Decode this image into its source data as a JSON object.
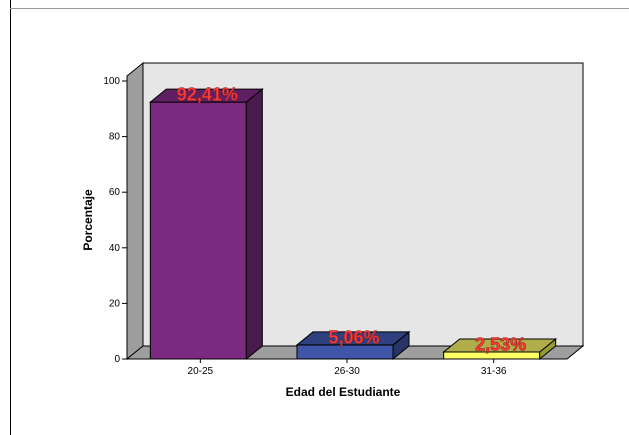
{
  "chart_data": {
    "type": "bar",
    "categories": [
      "20-25",
      "26-30",
      "31-36"
    ],
    "values": [
      92.41,
      5.06,
      2.53
    ],
    "data_labels": [
      "92,41%",
      "5,06%",
      "2,53%"
    ],
    "xlabel": "Edad del Estudiante",
    "ylabel": "Porcentaje",
    "ylim": [
      0,
      100
    ],
    "yticks": [
      "0",
      "20",
      "40",
      "60",
      "80",
      "100"
    ],
    "grid": false,
    "colors": [
      "#7b2a7f",
      "#3f56a8",
      "#ffff66"
    ],
    "side_colors": [
      "#4a1a4d",
      "#263466",
      "#999933"
    ],
    "top_colors": [
      "#5e2062",
      "#2f407e",
      "#b0ae4a"
    ],
    "background": "#e6e6e6"
  }
}
